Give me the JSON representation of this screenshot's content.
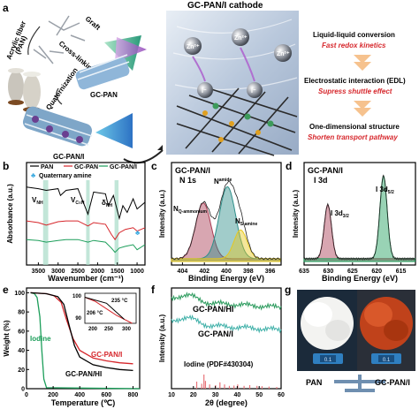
{
  "panels": {
    "a": {
      "letter": "a",
      "labels": {
        "pan_fiber": "Acrylic fiber",
        "pan_abbr": "(PAN)",
        "graft": "Graft",
        "crosslinking": "Cross-linking",
        "gc_pan": "GC-PAN",
        "quaternization": "Quaternization",
        "gc_pan_i": "GC-PAN/I",
        "cathode_title": "GC-PAN/I cathode",
        "zn": "Zn²⁺",
        "iodide": "I⁻",
        "conv_title": "Liquid-liquid conversion",
        "conv_sub": "Fast redox kinetics",
        "edl_title": "Electrostatic interaction (EDL)",
        "edl_sub": "Supress shuttle effect",
        "struct_title": "One-dimensional structure",
        "struct_sub": "Shorten transport pathway"
      },
      "colors": {
        "accent_red": "#d6262b",
        "arrow_orange": "#f6c28e",
        "cathode_bg": "#c9d6e6"
      }
    },
    "b": {
      "letter": "b",
      "legend": {
        "pan": "PAN",
        "gcpan": "GC-PAN",
        "gcpani": "GC-PAN/I",
        "quat": "Quaternary amine"
      },
      "peaks": {
        "vnh": "V",
        "vnh_sub": "NH",
        "vcn": "V",
        "vcn_sub": "C≡N",
        "dnh": "δ",
        "dnh_sub": "NH"
      },
      "xlabel": "Wavenumber (cm⁻¹)",
      "ylabel": "Absorbance (a.u.)",
      "xticks": [
        "3500",
        "3000",
        "2500",
        "2000",
        "1500",
        "1000"
      ]
    },
    "c": {
      "letter": "c",
      "title1": "GC-PAN/I",
      "title2": "N 1s",
      "labels": {
        "nq": "N",
        "nq_sub": "Q-ammonium",
        "na": "N",
        "na_sub": "amide",
        "ns": "N",
        "ns_sub": "S-amine"
      },
      "xlabel": "Binding Energy (eV)",
      "ylabel": "Intensity (a.u.)",
      "xticks": [
        "404",
        "402",
        "400",
        "398",
        "396"
      ]
    },
    "d": {
      "letter": "d",
      "title1": "GC-PAN/I",
      "title2": "I 3d",
      "labels": {
        "i32": "I 3d",
        "i32_sub": "3/2",
        "i52": "I 3d",
        "i52_sub": "5/2"
      },
      "xlabel": "Binding Energy (eV)",
      "ylabel": "Intensity (a.u.)",
      "xticks": [
        "635",
        "630",
        "625",
        "620",
        "615"
      ]
    },
    "e": {
      "letter": "e",
      "xlabel": "Temperature (℃)",
      "ylabel": "Weight (%)",
      "xticks": [
        "0",
        "200",
        "400",
        "600",
        "800"
      ],
      "yticks": [
        "0",
        "20",
        "40",
        "60",
        "80",
        "100"
      ],
      "labels": {
        "iodine": "Iodine",
        "gcpani": "GC-PAN/I",
        "gcpanhi": "GC-PAN/HI"
      },
      "inset": {
        "xticks": [
          "200",
          "250",
          "300"
        ],
        "ytick": "100",
        "yticks_low": [
          "90"
        ],
        "t1": "206 °C",
        "t2": "235 °C"
      }
    },
    "f": {
      "letter": "f",
      "labels": {
        "hi": "GC-PAN/HI",
        "i": "GC-PAN/I",
        "iodine": "Iodine (PDF#430304)"
      },
      "xlabel": "2θ (degree)",
      "ylabel": "Intensity (a.u.)",
      "xticks": [
        "10",
        "20",
        "30",
        "40",
        "50",
        "60"
      ]
    },
    "g": {
      "letter": "g",
      "left": "PAN",
      "right": "GC-PAN/I",
      "scale_left": "0.1",
      "scale_right": "0.1"
    }
  },
  "chart_data": [
    {
      "panel": "b",
      "type": "line",
      "title": "",
      "xlabel": "Wavenumber (cm⁻¹)",
      "ylabel": "Absorbance (a.u.)",
      "xlim": [
        3800,
        800
      ],
      "series": [
        {
          "name": "PAN",
          "color": "#000000",
          "x": [
            3800,
            3500,
            3300,
            3000,
            2940,
            2800,
            2500,
            2243,
            2100,
            1800,
            1730,
            1600,
            1450,
            1360,
            1250,
            1100,
            1000,
            800
          ],
          "y": [
            0.92,
            0.9,
            0.88,
            0.9,
            0.82,
            0.88,
            0.9,
            0.6,
            0.86,
            0.84,
            0.7,
            0.82,
            0.55,
            0.7,
            0.62,
            0.78,
            0.66,
            0.74
          ]
        },
        {
          "name": "GC-PAN",
          "color": "#d6262b",
          "x": [
            3800,
            3500,
            3300,
            3000,
            2800,
            2500,
            2243,
            2100,
            1800,
            1650,
            1560,
            1450,
            1300,
            1100,
            1000,
            800
          ],
          "y": [
            0.52,
            0.5,
            0.47,
            0.51,
            0.52,
            0.52,
            0.46,
            0.5,
            0.48,
            0.36,
            0.3,
            0.38,
            0.42,
            0.44,
            0.4,
            0.44
          ]
        },
        {
          "name": "GC-PAN/I",
          "color": "#1c9e5a",
          "x": [
            3800,
            3500,
            3300,
            3000,
            2800,
            2500,
            2243,
            2100,
            1800,
            1650,
            1560,
            1450,
            1300,
            1100,
            1000,
            800
          ],
          "y": [
            0.3,
            0.29,
            0.27,
            0.29,
            0.3,
            0.3,
            0.27,
            0.29,
            0.27,
            0.2,
            0.15,
            0.2,
            0.22,
            0.24,
            0.18,
            0.24
          ]
        }
      ]
    },
    {
      "panel": "c",
      "type": "line",
      "title": "",
      "xlabel": "Binding Energy (eV)",
      "ylabel": "Intensity (a.u.)",
      "xlim": [
        405,
        395
      ],
      "peaks": [
        {
          "name": "NQ-ammonium",
          "center": 402.1,
          "height": 0.62,
          "width": 0.7,
          "color": "#a83a52"
        },
        {
          "name": "Namide",
          "center": 399.9,
          "height": 0.8,
          "width": 0.75,
          "color": "#2f8f8a"
        },
        {
          "name": "NS-amine",
          "center": 398.7,
          "height": 0.32,
          "width": 0.6,
          "color": "#e6c81f"
        }
      ]
    },
    {
      "panel": "d",
      "type": "line",
      "title": "",
      "xlabel": "Binding Energy (eV)",
      "ylabel": "Intensity (a.u.)",
      "xlim": [
        635,
        612
      ],
      "peaks": [
        {
          "name": "I 3d3/2",
          "center": 630.1,
          "height": 0.6,
          "width": 0.75,
          "color": "#a83a52"
        },
        {
          "name": "I 3d5/2",
          "center": 618.6,
          "height": 0.92,
          "width": 0.75,
          "color": "#1c9e5a"
        }
      ]
    },
    {
      "panel": "e",
      "type": "line",
      "title": "",
      "xlabel": "Temperature (℃)",
      "ylabel": "Weight (%)",
      "xlim": [
        0,
        850
      ],
      "ylim": [
        0,
        100
      ],
      "series": [
        {
          "name": "Iodine",
          "color": "#1c9e5a",
          "x": [
            30,
            60,
            80,
            100,
            115,
            130,
            150,
            850
          ],
          "y": [
            100,
            99,
            95,
            75,
            40,
            10,
            1,
            0
          ]
        },
        {
          "name": "GC-PAN/I",
          "color": "#d6262b",
          "x": [
            30,
            150,
            206,
            260,
            300,
            350,
            400,
            500,
            600,
            700,
            800
          ],
          "y": [
            100,
            99,
            97,
            90,
            72,
            52,
            40,
            32,
            29,
            27,
            26
          ]
        },
        {
          "name": "GC-PAN/HI",
          "color": "#000000",
          "x": [
            30,
            150,
            235,
            280,
            320,
            360,
            400,
            500,
            600,
            700,
            800
          ],
          "y": [
            100,
            99,
            96,
            88,
            66,
            45,
            33,
            25,
            22,
            20,
            19
          ]
        }
      ]
    },
    {
      "panel": "f",
      "type": "bar",
      "title": "",
      "xlabel": "2θ (degree)",
      "ylabel": "Intensity (a.u.)",
      "xlim": [
        10,
        60
      ],
      "reference": {
        "name": "Iodine (PDF#430304)",
        "x": [
          21.5,
          23.8,
          24.8,
          25.5,
          27.4,
          30.1,
          32.1,
          34.2,
          36.4,
          38.5,
          40.2,
          43.1,
          45.7,
          49.0,
          51.3,
          54.5,
          58.0
        ],
        "y": [
          0.5,
          0.35,
          1.0,
          0.55,
          0.3,
          0.25,
          0.45,
          0.3,
          0.2,
          0.22,
          0.3,
          0.2,
          0.25,
          0.2,
          0.18,
          0.15,
          0.12
        ]
      },
      "series": [
        {
          "name": "GC-PAN/HI",
          "color": "#2a9a5c",
          "x": [
            10,
            17,
            25,
            35,
            45,
            60
          ],
          "y": [
            0.82,
            0.88,
            0.84,
            0.8,
            0.78,
            0.76
          ]
        },
        {
          "name": "GC-PAN/I",
          "color": "#3fb0a8",
          "x": [
            10,
            17,
            25,
            35,
            45,
            60
          ],
          "y": [
            0.5,
            0.56,
            0.52,
            0.48,
            0.46,
            0.44
          ]
        }
      ]
    }
  ]
}
